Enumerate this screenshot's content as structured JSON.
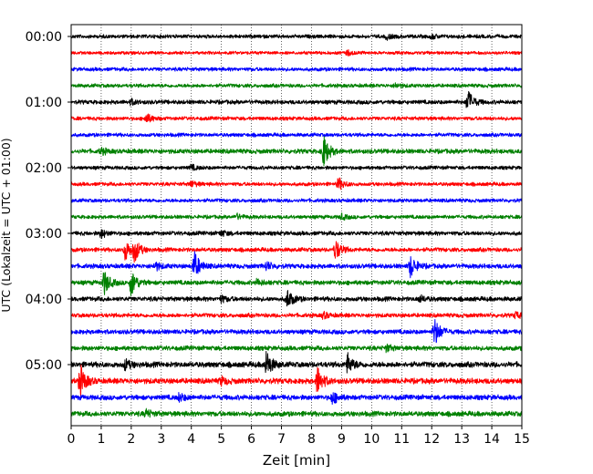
{
  "chart_data": {
    "type": "line",
    "title": "",
    "xlabel": "Zeit  [min]",
    "ylabel": "UTC (Lokalzeit = UTC + 01:00)",
    "xlim": [
      0,
      15
    ],
    "x_ticks": [
      0,
      1,
      2,
      3,
      4,
      5,
      6,
      7,
      8,
      9,
      10,
      11,
      12,
      13,
      14,
      15
    ],
    "y_tick_labels": [
      "00:00",
      "01:00",
      "02:00",
      "03:00",
      "04:00",
      "05:00"
    ],
    "y_tick_trace_index": [
      0,
      4,
      8,
      12,
      16,
      20
    ],
    "grid": "vertical-dotted",
    "color_cycle": [
      "#000000",
      "#ff0000",
      "#0000ff",
      "#008000"
    ],
    "trace_interval_minutes": 15,
    "series": [
      {
        "name": "00:00",
        "color": "#000000",
        "amplitude": 0.8,
        "events": [
          {
            "t": 10.5,
            "amp": 1.2
          },
          {
            "t": 12.0,
            "amp": 1.0
          }
        ]
      },
      {
        "name": "00:15",
        "color": "#ff0000",
        "amplitude": 0.7,
        "events": [
          {
            "t": 9.2,
            "amp": 1.2
          }
        ]
      },
      {
        "name": "00:30",
        "color": "#0000ff",
        "amplitude": 0.8,
        "events": []
      },
      {
        "name": "00:45",
        "color": "#008000",
        "amplitude": 0.8,
        "events": [
          {
            "t": 10.8,
            "amp": 1.1
          }
        ]
      },
      {
        "name": "01:00",
        "color": "#000000",
        "amplitude": 0.9,
        "events": [
          {
            "t": 2.0,
            "amp": 1.2
          },
          {
            "t": 13.2,
            "amp": 6.0
          }
        ]
      },
      {
        "name": "01:15",
        "color": "#ff0000",
        "amplitude": 0.8,
        "events": [
          {
            "t": 2.5,
            "amp": 2.5
          }
        ]
      },
      {
        "name": "01:30",
        "color": "#0000ff",
        "amplitude": 0.8,
        "events": []
      },
      {
        "name": "01:45",
        "color": "#008000",
        "amplitude": 1.0,
        "events": [
          {
            "t": 1.0,
            "amp": 1.5
          },
          {
            "t": 8.4,
            "amp": 8.0
          }
        ]
      },
      {
        "name": "02:00",
        "color": "#000000",
        "amplitude": 0.8,
        "events": [
          {
            "t": 4.0,
            "amp": 1.2
          }
        ]
      },
      {
        "name": "02:15",
        "color": "#ff0000",
        "amplitude": 0.8,
        "events": [
          {
            "t": 4.0,
            "amp": 1.5
          },
          {
            "t": 8.9,
            "amp": 3.0
          }
        ]
      },
      {
        "name": "02:30",
        "color": "#0000ff",
        "amplitude": 0.8,
        "events": []
      },
      {
        "name": "02:45",
        "color": "#008000",
        "amplitude": 0.8,
        "events": [
          {
            "t": 5.5,
            "amp": 1.3
          },
          {
            "t": 9.0,
            "amp": 1.3
          }
        ]
      },
      {
        "name": "03:00",
        "color": "#000000",
        "amplitude": 0.9,
        "events": [
          {
            "t": 1.0,
            "amp": 2.0
          },
          {
            "t": 5.0,
            "amp": 1.3
          }
        ]
      },
      {
        "name": "03:15",
        "color": "#ff0000",
        "amplitude": 0.9,
        "events": [
          {
            "t": 1.8,
            "amp": 5.0
          },
          {
            "t": 2.1,
            "amp": 5.5
          },
          {
            "t": 8.8,
            "amp": 5.0
          }
        ]
      },
      {
        "name": "03:30",
        "color": "#0000ff",
        "amplitude": 1.0,
        "events": [
          {
            "t": 2.8,
            "amp": 2.0
          },
          {
            "t": 4.1,
            "amp": 7.0
          },
          {
            "t": 6.5,
            "amp": 2.0
          },
          {
            "t": 11.3,
            "amp": 5.5
          }
        ]
      },
      {
        "name": "03:45",
        "color": "#008000",
        "amplitude": 1.0,
        "events": [
          {
            "t": 1.1,
            "amp": 6.0
          },
          {
            "t": 2.0,
            "amp": 6.5
          },
          {
            "t": 6.2,
            "amp": 1.5
          }
        ]
      },
      {
        "name": "04:00",
        "color": "#000000",
        "amplitude": 1.0,
        "events": [
          {
            "t": 5.0,
            "amp": 1.5
          },
          {
            "t": 7.2,
            "amp": 4.5
          },
          {
            "t": 11.6,
            "amp": 1.5
          }
        ]
      },
      {
        "name": "04:15",
        "color": "#ff0000",
        "amplitude": 0.9,
        "events": [
          {
            "t": 8.4,
            "amp": 1.5
          },
          {
            "t": 14.8,
            "amp": 1.5
          }
        ]
      },
      {
        "name": "04:30",
        "color": "#0000ff",
        "amplitude": 1.0,
        "events": [
          {
            "t": 12.1,
            "amp": 7.0
          }
        ]
      },
      {
        "name": "04:45",
        "color": "#008000",
        "amplitude": 1.0,
        "events": [
          {
            "t": 10.5,
            "amp": 1.6
          }
        ]
      },
      {
        "name": "05:00",
        "color": "#000000",
        "amplitude": 1.2,
        "events": [
          {
            "t": 1.8,
            "amp": 2.5
          },
          {
            "t": 6.5,
            "amp": 6.5
          },
          {
            "t": 9.2,
            "amp": 5.0
          }
        ]
      },
      {
        "name": "05:15",
        "color": "#ff0000",
        "amplitude": 1.2,
        "events": [
          {
            "t": 0.3,
            "amp": 8.0
          },
          {
            "t": 5.0,
            "amp": 1.8
          },
          {
            "t": 8.2,
            "amp": 7.0
          }
        ]
      },
      {
        "name": "05:30",
        "color": "#0000ff",
        "amplitude": 1.1,
        "events": [
          {
            "t": 3.6,
            "amp": 1.8
          },
          {
            "t": 8.7,
            "amp": 3.0
          }
        ]
      },
      {
        "name": "05:45",
        "color": "#008000",
        "amplitude": 1.1,
        "events": [
          {
            "t": 2.5,
            "amp": 1.8
          }
        ]
      }
    ]
  }
}
